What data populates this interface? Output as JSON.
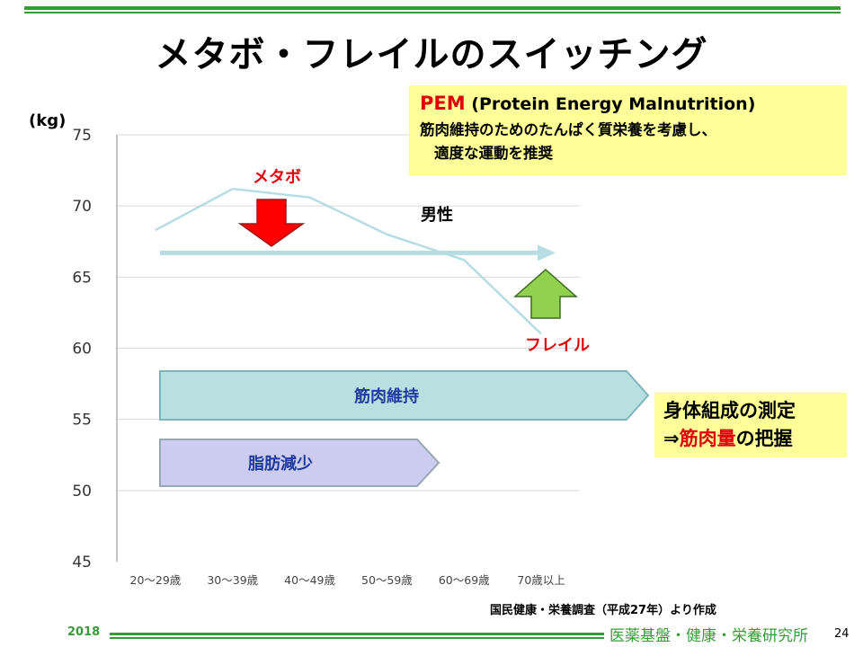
{
  "slide": {
    "title": "メタボ・フレイルのスイッチング",
    "year": "2018",
    "institute": "医薬基盤・健康・栄養研究所",
    "page_number": "24",
    "source": "国民健康・栄養調査（平成27年）より作成"
  },
  "pem_box": {
    "acronym": "PEM",
    "expansion": " (Protein Energy Malnutrition)",
    "line2": "筋肉維持のためのたんぱく質栄養を考慮し、",
    "line3": "適度な運動を推奨"
  },
  "measure_box": {
    "line1": "身体組成の測定",
    "line2_prefix": "⇒",
    "line2_highlight": "筋肉量",
    "line2_suffix": "の把握"
  },
  "annotations": {
    "metabo": "メタボ",
    "frail": "フレイル",
    "male": "男性",
    "muscle_maintain": "筋肉維持",
    "fat_reduce": "脂肪減少"
  },
  "colors": {
    "green": "#3a9a3a",
    "red": "#e0000b",
    "line": "#b7dde2",
    "yellow_box": "#ffff99",
    "muscle_fill": "#b8e0e1",
    "fat_fill": "#ccccf0",
    "label_blue": "#1f3a9c"
  },
  "chart_data": {
    "type": "line",
    "title": "",
    "xlabel": "",
    "ylabel": "(kg)",
    "ylim": [
      45,
      75
    ],
    "yticks": [
      45,
      50,
      55,
      60,
      65,
      70,
      75
    ],
    "grid": true,
    "categories": [
      "20～29歳",
      "30～39歳",
      "40～49歳",
      "50～59歳",
      "60～69歳",
      "70歳以上"
    ],
    "series": [
      {
        "name": "男性",
        "values": [
          68.3,
          71.2,
          70.6,
          68.0,
          66.2,
          61.0
        ]
      }
    ],
    "reference_level": 66.7
  }
}
